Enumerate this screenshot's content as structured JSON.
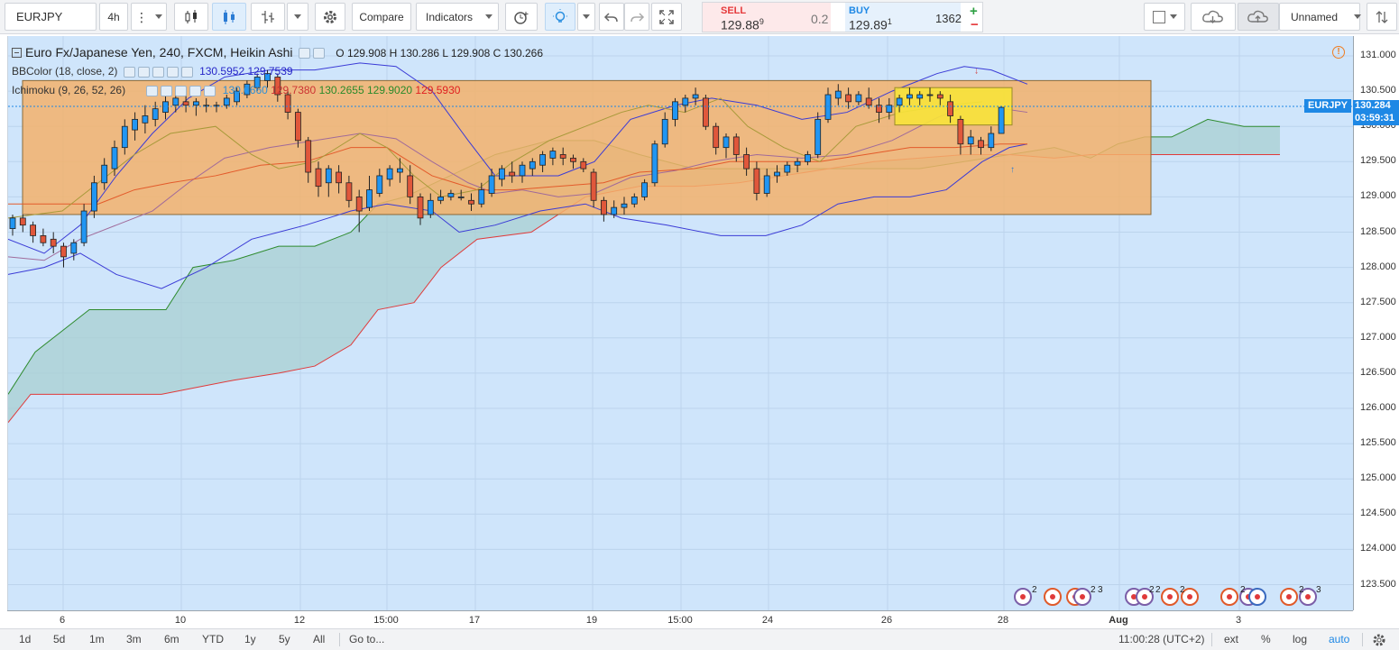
{
  "toolbar": {
    "symbol": "EURJPY",
    "interval": "4h",
    "compare_label": "Compare",
    "indicators_label": "Indicators",
    "layout_name": "Unnamed"
  },
  "trade": {
    "sell_label": "SELL",
    "sell_price": "129.88",
    "sell_price_sup": "9",
    "spread": "0.2",
    "buy_label": "BUY",
    "buy_price": "129.89",
    "buy_price_sup": "1",
    "quantity": "1362",
    "plus": "+",
    "minus": "−"
  },
  "legend": {
    "title": "Euro Fx/Japanese Yen, 240, FXCM, Heikin Ashi",
    "ohlc": "O 129.908  H 130.286  L 129.908  C 130.266",
    "bb_name": "BBColor (18, close, 2)",
    "bb_v1": "130.5952",
    "bb_v2": "129.7539",
    "ichi_name": "Ichimoku (9, 26, 52, 26)",
    "ichi_v1": "130.0660",
    "ichi_v2": "129.7380",
    "ichi_v3": "130.2655",
    "ichi_v4": "129.9020",
    "ichi_v5": "129.5930"
  },
  "price_axis": [
    "131.000",
    "130.500",
    "130.000",
    "129.500",
    "129.000",
    "128.500",
    "128.000",
    "127.500",
    "127.000",
    "126.500",
    "126.000",
    "125.500",
    "125.000",
    "124.500",
    "124.000",
    "123.500"
  ],
  "time_axis": [
    "6",
    "10",
    "12",
    "15:00",
    "17",
    "19",
    "15:00",
    "24",
    "26",
    "28",
    "Aug",
    "3"
  ],
  "last_price_tag": "130.284",
  "countdown": "03:59:31",
  "symbol_tag": "EURJPY",
  "alert_glyph": "!",
  "colors": {
    "chart_bg": "#cfe5fb",
    "bull": "#2196f3",
    "bear": "#e0573b",
    "box_orange": "#f3b26b",
    "box_yellow": "#f7e33a",
    "cloud": "#a8cfd2",
    "bb": "#3b3bd6",
    "tenkan": "#2b9a2b"
  },
  "bottom": {
    "ranges": [
      "1d",
      "5d",
      "1m",
      "3m",
      "6m",
      "YTD",
      "1y",
      "5y",
      "All"
    ],
    "goto": "Go to...",
    "clock": "11:00:28 (UTC+2)",
    "ext": "ext",
    "percent": "%",
    "log": "log",
    "auto": "auto"
  },
  "chart_data": {
    "type": "candlestick",
    "chart_style": "Heikin Ashi",
    "symbol": "EURJPY",
    "interval": "240",
    "source": "FXCM",
    "y_range": [
      123.2,
      131.2
    ],
    "last": 130.284,
    "candles": [
      [
        128.55,
        128.75,
        128.45,
        128.7
      ],
      [
        128.7,
        128.75,
        128.5,
        128.6
      ],
      [
        128.6,
        128.65,
        128.35,
        128.45
      ],
      [
        128.45,
        128.55,
        128.3,
        128.35
      ],
      [
        128.4,
        128.5,
        128.2,
        128.3
      ],
      [
        128.3,
        128.35,
        128.0,
        128.15
      ],
      [
        128.2,
        128.4,
        128.1,
        128.35
      ],
      [
        128.35,
        128.9,
        128.3,
        128.8
      ],
      [
        128.8,
        129.3,
        128.7,
        129.2
      ],
      [
        129.2,
        129.55,
        129.1,
        129.45
      ],
      [
        129.4,
        129.8,
        129.3,
        129.7
      ],
      [
        129.7,
        130.1,
        129.6,
        130.0
      ],
      [
        129.95,
        130.2,
        129.8,
        130.1
      ],
      [
        130.05,
        130.3,
        129.9,
        130.15
      ],
      [
        130.1,
        130.35,
        130.0,
        130.25
      ],
      [
        130.2,
        130.45,
        130.1,
        130.35
      ],
      [
        130.3,
        130.5,
        130.2,
        130.4
      ],
      [
        130.35,
        130.45,
        130.2,
        130.3
      ],
      [
        130.3,
        130.4,
        130.15,
        130.35
      ],
      [
        130.3,
        130.4,
        130.2,
        130.3
      ],
      [
        130.3,
        130.35,
        130.2,
        130.3
      ],
      [
        130.3,
        130.45,
        130.25,
        130.4
      ],
      [
        130.35,
        130.55,
        130.3,
        130.5
      ],
      [
        130.45,
        130.65,
        130.4,
        130.6
      ],
      [
        130.55,
        130.75,
        130.5,
        130.7
      ],
      [
        130.65,
        130.8,
        130.55,
        130.75
      ],
      [
        130.7,
        130.75,
        130.35,
        130.45
      ],
      [
        130.45,
        130.5,
        130.1,
        130.2
      ],
      [
        130.2,
        130.25,
        129.7,
        129.8
      ],
      [
        129.8,
        129.85,
        129.2,
        129.35
      ],
      [
        129.4,
        129.5,
        129.0,
        129.15
      ],
      [
        129.2,
        129.45,
        129.0,
        129.4
      ],
      [
        129.35,
        129.45,
        129.05,
        129.2
      ],
      [
        129.2,
        129.3,
        128.85,
        128.95
      ],
      [
        129.0,
        129.1,
        128.5,
        128.8
      ],
      [
        128.85,
        129.3,
        128.8,
        129.1
      ],
      [
        129.05,
        129.4,
        129.0,
        129.3
      ],
      [
        129.25,
        129.45,
        129.15,
        129.4
      ],
      [
        129.35,
        129.55,
        129.2,
        129.4
      ],
      [
        129.3,
        129.45,
        128.9,
        129.0
      ],
      [
        129.0,
        129.05,
        128.6,
        128.7
      ],
      [
        128.75,
        129.05,
        128.7,
        128.95
      ],
      [
        128.95,
        129.1,
        128.9,
        129.0
      ],
      [
        129.0,
        129.1,
        128.95,
        129.05
      ],
      [
        129.0,
        129.1,
        128.95,
        129.0
      ],
      [
        128.95,
        129.05,
        128.8,
        128.9
      ],
      [
        128.9,
        129.2,
        128.85,
        129.1
      ],
      [
        129.05,
        129.4,
        129.0,
        129.3
      ],
      [
        129.25,
        129.45,
        129.15,
        129.4
      ],
      [
        129.35,
        129.5,
        129.2,
        129.3
      ],
      [
        129.3,
        129.5,
        129.2,
        129.45
      ],
      [
        129.4,
        129.55,
        129.3,
        129.5
      ],
      [
        129.45,
        129.65,
        129.35,
        129.6
      ],
      [
        129.55,
        129.7,
        129.45,
        129.65
      ],
      [
        129.6,
        129.7,
        129.45,
        129.55
      ],
      [
        129.55,
        129.6,
        129.4,
        129.5
      ],
      [
        129.5,
        129.55,
        129.35,
        129.4
      ],
      [
        129.35,
        129.4,
        128.85,
        128.95
      ],
      [
        128.95,
        129.0,
        128.65,
        128.75
      ],
      [
        128.75,
        128.95,
        128.7,
        128.85
      ],
      [
        128.85,
        129.0,
        128.75,
        128.9
      ],
      [
        128.9,
        129.05,
        128.85,
        129.0
      ],
      [
        129.0,
        129.25,
        128.95,
        129.2
      ],
      [
        129.2,
        129.8,
        129.15,
        129.75
      ],
      [
        129.75,
        130.2,
        129.7,
        130.1
      ],
      [
        130.1,
        130.4,
        130.0,
        130.35
      ],
      [
        130.3,
        130.45,
        130.2,
        130.4
      ],
      [
        130.4,
        130.55,
        130.3,
        130.45
      ],
      [
        130.4,
        130.45,
        129.95,
        130.0
      ],
      [
        130.0,
        130.05,
        129.6,
        129.7
      ],
      [
        129.7,
        129.9,
        129.55,
        129.85
      ],
      [
        129.85,
        129.9,
        129.5,
        129.6
      ],
      [
        129.6,
        129.7,
        129.3,
        129.4
      ],
      [
        129.4,
        129.5,
        128.95,
        129.05
      ],
      [
        129.05,
        129.4,
        129.0,
        129.3
      ],
      [
        129.3,
        129.45,
        129.2,
        129.35
      ],
      [
        129.35,
        129.5,
        129.3,
        129.45
      ],
      [
        129.45,
        129.55,
        129.35,
        129.5
      ],
      [
        129.5,
        129.65,
        129.45,
        129.6
      ],
      [
        129.6,
        130.2,
        129.55,
        130.1
      ],
      [
        130.1,
        130.55,
        130.05,
        130.45
      ],
      [
        130.4,
        130.6,
        130.3,
        130.5
      ],
      [
        130.45,
        130.55,
        130.25,
        130.35
      ],
      [
        130.35,
        130.5,
        130.3,
        130.45
      ],
      [
        130.4,
        130.55,
        130.25,
        130.3
      ],
      [
        130.3,
        130.4,
        130.05,
        130.2
      ],
      [
        130.2,
        130.4,
        130.1,
        130.3
      ],
      [
        130.3,
        130.45,
        130.2,
        130.4
      ],
      [
        130.4,
        130.55,
        130.3,
        130.45
      ],
      [
        130.4,
        130.5,
        130.3,
        130.45
      ],
      [
        130.45,
        130.55,
        130.35,
        130.45
      ],
      [
        130.45,
        130.5,
        130.3,
        130.4
      ],
      [
        130.35,
        130.45,
        130.05,
        130.15
      ],
      [
        130.1,
        130.15,
        129.6,
        129.75
      ],
      [
        129.75,
        129.95,
        129.6,
        129.85
      ],
      [
        129.8,
        129.85,
        129.6,
        129.7
      ],
      [
        129.7,
        130.0,
        129.65,
        129.9
      ],
      [
        129.9,
        130.29,
        129.9,
        130.27
      ]
    ]
  }
}
